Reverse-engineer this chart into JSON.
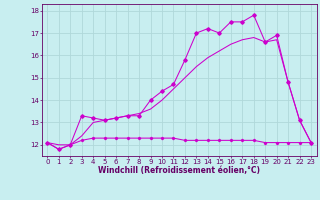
{
  "xlabel": "Windchill (Refroidissement éolien,°C)",
  "hours": [
    0,
    1,
    2,
    3,
    4,
    5,
    6,
    7,
    8,
    9,
    10,
    11,
    12,
    13,
    14,
    15,
    16,
    17,
    18,
    19,
    20,
    21,
    22,
    23
  ],
  "temp": [
    12.1,
    11.8,
    12.0,
    13.3,
    13.2,
    13.1,
    13.2,
    13.3,
    13.3,
    14.0,
    14.4,
    14.7,
    15.8,
    17.0,
    17.2,
    17.0,
    17.5,
    17.5,
    17.8,
    16.6,
    16.9,
    14.8,
    13.1,
    12.1
  ],
  "windchill": [
    12.1,
    11.8,
    12.0,
    12.2,
    12.3,
    12.3,
    12.3,
    12.3,
    12.3,
    12.3,
    12.3,
    12.3,
    12.2,
    12.2,
    12.2,
    12.2,
    12.2,
    12.2,
    12.2,
    12.1,
    12.1,
    12.1,
    12.1,
    12.1
  ],
  "trend": [
    12.1,
    12.0,
    12.0,
    12.4,
    13.0,
    13.1,
    13.2,
    13.3,
    13.4,
    13.6,
    14.0,
    14.5,
    15.0,
    15.5,
    15.9,
    16.2,
    16.5,
    16.7,
    16.8,
    16.6,
    16.7,
    14.8,
    13.1,
    12.1
  ],
  "color": "#cc00cc",
  "bg_color": "#c8eef0",
  "grid_color": "#aadddd",
  "ylim": [
    11.5,
    18.3
  ],
  "yticks": [
    12,
    13,
    14,
    15,
    16,
    17,
    18
  ],
  "xticks": [
    0,
    1,
    2,
    3,
    4,
    5,
    6,
    7,
    8,
    9,
    10,
    11,
    12,
    13,
    14,
    15,
    16,
    17,
    18,
    19,
    20,
    21,
    22,
    23
  ],
  "label_fontsize": 5.5,
  "tick_fontsize": 5.0
}
